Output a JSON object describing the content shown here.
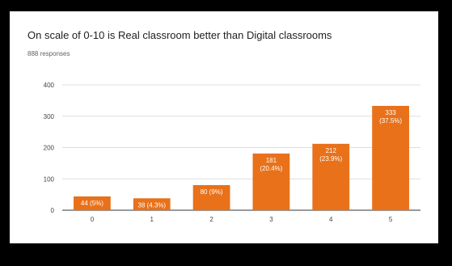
{
  "chart_data": {
    "type": "bar",
    "title": "On scale of 0-10 is Real classroom better than Digital classrooms",
    "subtitle": "888 responses",
    "categories": [
      "0",
      "1",
      "2",
      "3",
      "4",
      "5"
    ],
    "values": [
      44,
      38,
      80,
      181,
      212,
      333
    ],
    "data_labels": [
      "44 (5%)",
      "38 (4.3%)",
      "80 (9%)",
      "181 (20.4%)",
      "212 (23.9%)",
      "333 (37.5%)"
    ],
    "ylim": [
      0,
      400
    ],
    "yticks": [
      0,
      100,
      200,
      300,
      400
    ],
    "grid": true,
    "bar_color": "#e8711a",
    "xlabel": "",
    "ylabel": ""
  }
}
